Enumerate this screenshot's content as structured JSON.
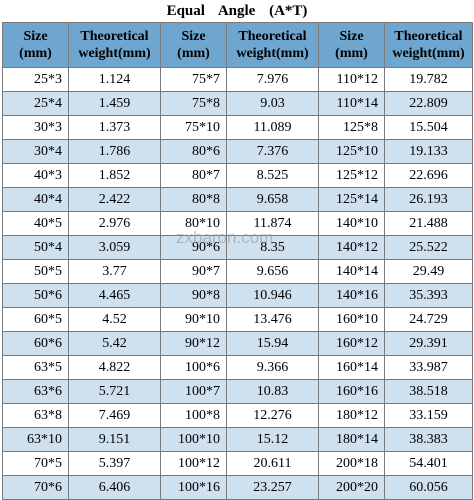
{
  "title": "Equal    Angle (A*T)",
  "headers": [
    "Size (mm)",
    "Theoretical weight(mm)",
    "Size (mm)",
    "Theoretical weight(mm)",
    "Size (mm)",
    "Theoretical weight(mm)"
  ],
  "header_lines": [
    [
      "Size",
      "(mm)"
    ],
    [
      "Theoretical",
      "weight(mm)"
    ],
    [
      "Size",
      "(mm)"
    ],
    [
      "Theoretical",
      "weight(mm)"
    ],
    [
      "Size",
      "(mm)"
    ],
    [
      "Theoretical",
      "weight(mm)"
    ]
  ],
  "rows": [
    [
      "25*3",
      "1.124",
      "75*7",
      "7.976",
      "110*12",
      "19.782"
    ],
    [
      "25*4",
      "1.459",
      "75*8",
      "9.03",
      "110*14",
      "22.809"
    ],
    [
      "30*3",
      "1.373",
      "75*10",
      "11.089",
      "125*8",
      "15.504"
    ],
    [
      "30*4",
      "1.786",
      "80*6",
      "7.376",
      "125*10",
      "19.133"
    ],
    [
      "40*3",
      "1.852",
      "80*7",
      "8.525",
      "125*12",
      "22.696"
    ],
    [
      "40*4",
      "2.422",
      "80*8",
      "9.658",
      "125*14",
      "26.193"
    ],
    [
      "40*5",
      "2.976",
      "80*10",
      "11.874",
      "140*10",
      "21.488"
    ],
    [
      "50*4",
      "3.059",
      "90*6",
      "8.35",
      "140*12",
      "25.522"
    ],
    [
      "50*5",
      "3.77",
      "90*7",
      "9.656",
      "140*14",
      "29.49"
    ],
    [
      "50*6",
      "4.465",
      "90*8",
      "10.946",
      "140*16",
      "35.393"
    ],
    [
      "60*5",
      "4.52",
      "90*10",
      "13.476",
      "160*10",
      "24.729"
    ],
    [
      "60*6",
      "5.42",
      "90*12",
      "15.94",
      "160*12",
      "29.391"
    ],
    [
      "63*5",
      "4.822",
      "100*6",
      "9.366",
      "160*14",
      "33.987"
    ],
    [
      "63*6",
      "5.721",
      "100*7",
      "10.83",
      "160*16",
      "38.518"
    ],
    [
      "63*8",
      "7.469",
      "100*8",
      "12.276",
      "180*12",
      "33.159"
    ],
    [
      "63*10",
      "9.151",
      "100*10",
      "15.12",
      "180*14",
      "38.383"
    ],
    [
      "70*5",
      "5.397",
      "100*12",
      "20.611",
      "200*18",
      "54.401"
    ],
    [
      "70*6",
      "6.406",
      "100*16",
      "23.257",
      "200*20",
      "60.056"
    ]
  ],
  "watermark": "zxbaron.com"
}
